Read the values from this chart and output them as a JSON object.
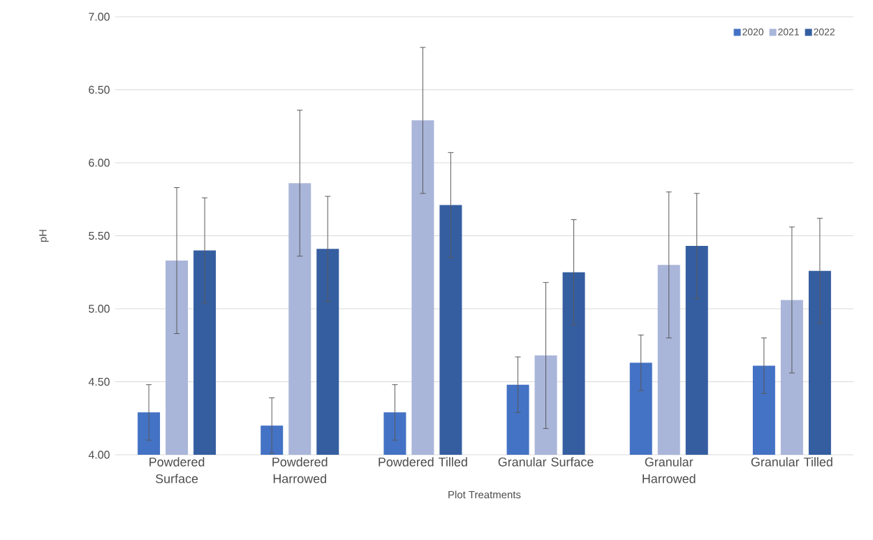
{
  "chart_data": {
    "type": "bar",
    "xlabel": "Plot Treatments",
    "ylabel": "pH",
    "categories": [
      "Powdered Surface",
      "Powdered Harrowed",
      "Powdered Tilled",
      "Granular Surface",
      "Granular Harrowed",
      "Granular Tilled"
    ],
    "series": [
      {
        "name": "2020",
        "color": "#4472c4",
        "values": [
          4.29,
          4.2,
          4.29,
          4.48,
          4.63,
          4.61
        ],
        "errors": [
          0.19,
          0.19,
          0.19,
          0.19,
          0.19,
          0.19
        ]
      },
      {
        "name": "2021",
        "color": "#a9b5d9",
        "values": [
          5.33,
          5.86,
          6.29,
          4.68,
          5.3,
          5.06
        ],
        "errors": [
          0.5,
          0.5,
          0.5,
          0.5,
          0.5,
          0.5
        ]
      },
      {
        "name": "2022",
        "color": "#355ea0",
        "values": [
          5.4,
          5.41,
          5.71,
          5.25,
          5.43,
          5.26
        ],
        "errors": [
          0.36,
          0.36,
          0.36,
          0.36,
          0.36,
          0.36
        ]
      }
    ],
    "ylim": [
      4,
      7
    ],
    "yticks": [
      {
        "value": 4,
        "label": "4.00"
      },
      {
        "value": 4.5,
        "label": "4.50"
      },
      {
        "value": 5,
        "label": "5.00"
      },
      {
        "value": 5.5,
        "label": "5.50"
      },
      {
        "value": 6,
        "label": "6.00"
      },
      {
        "value": 6.5,
        "label": "6.50"
      },
      {
        "value": 7,
        "label": "7.00"
      }
    ],
    "grid": "y",
    "legend": "top right"
  }
}
